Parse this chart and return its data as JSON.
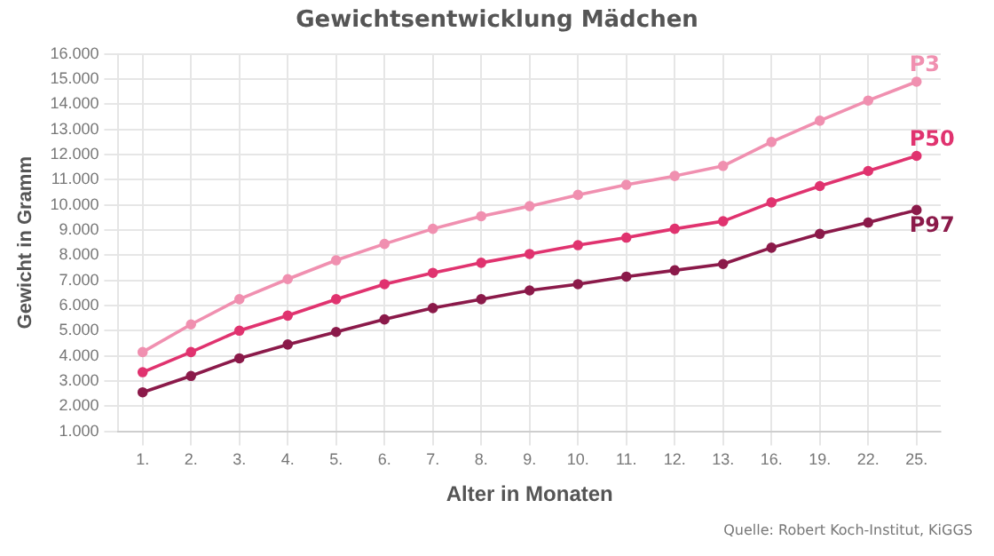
{
  "chart_data": {
    "type": "line",
    "title": "Gewichtsentwicklung Mädchen",
    "xlabel": "Alter in Monaten",
    "ylabel": "Gewicht in Gramm",
    "categories": [
      "1.",
      "2.",
      "3.",
      "4.",
      "5.",
      "6.",
      "7.",
      "8.",
      "9.",
      "10.",
      "11.",
      "12.",
      "13.",
      "16.",
      "19.",
      "22.",
      "25."
    ],
    "series": [
      {
        "name": "P3",
        "color": "#f090b0",
        "values": [
          4150,
          5250,
          6250,
          7050,
          7800,
          8450,
          9050,
          9550,
          9950,
          10400,
          10800,
          11150,
          11550,
          12500,
          13350,
          14150,
          14900
        ]
      },
      {
        "name": "P50",
        "color": "#e0336f",
        "values": [
          3350,
          4150,
          5000,
          5600,
          6250,
          6850,
          7300,
          7700,
          8050,
          8400,
          8700,
          9050,
          9350,
          10100,
          10750,
          11350,
          11950
        ]
      },
      {
        "name": "P97",
        "color": "#8b1a4a",
        "values": [
          2550,
          3200,
          3900,
          4450,
          4950,
          5450,
          5900,
          6250,
          6600,
          6850,
          7150,
          7400,
          7650,
          8300,
          8850,
          9300,
          9800
        ]
      }
    ],
    "ylim": [
      1000,
      16000
    ],
    "yticks": [
      {
        "value": 1000,
        "label": "1.000"
      },
      {
        "value": 2000,
        "label": "2.000"
      },
      {
        "value": 3000,
        "label": "3.000"
      },
      {
        "value": 4000,
        "label": "4.000"
      },
      {
        "value": 5000,
        "label": "5.000"
      },
      {
        "value": 6000,
        "label": "6.000"
      },
      {
        "value": 7000,
        "label": "7.000"
      },
      {
        "value": 8000,
        "label": "8.000"
      },
      {
        "value": 9000,
        "label": "9.000"
      },
      {
        "value": 10000,
        "label": "10.000"
      },
      {
        "value": 11000,
        "label": "11.000"
      },
      {
        "value": 12000,
        "label": "12.000"
      },
      {
        "value": 13000,
        "label": "13.000"
      },
      {
        "value": 14000,
        "label": "14.000"
      },
      {
        "value": 15000,
        "label": "15.000"
      },
      {
        "value": 16000,
        "label": "16.000"
      }
    ],
    "grid": true,
    "legend": "right",
    "marker": "circle",
    "line_style": "solid",
    "annotations": [
      "Quelle: Robert Koch-Institut, KiGGS"
    ]
  }
}
